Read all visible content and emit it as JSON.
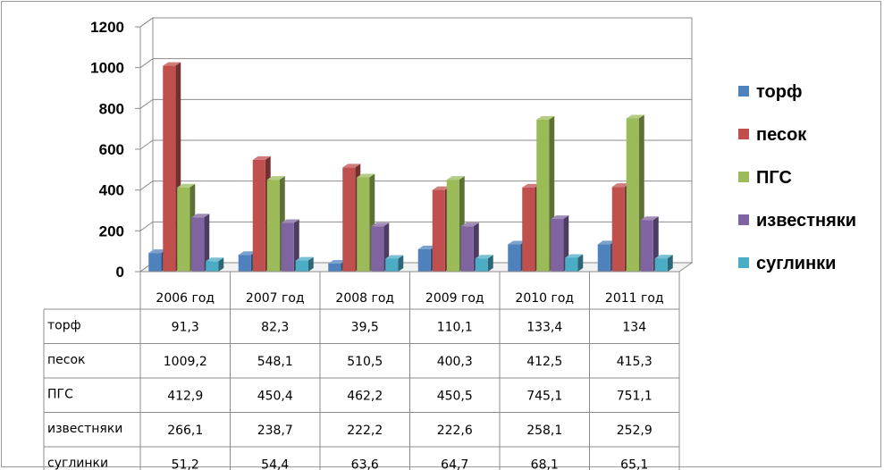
{
  "chart_data": {
    "type": "bar",
    "categories": [
      "2006 год",
      "2007 год",
      "2008 год",
      "2009 год",
      "2010 год",
      "2011 год"
    ],
    "series": [
      {
        "name": "торф",
        "values": [
          91.3,
          82.3,
          39.5,
          110.1,
          133.4,
          134
        ],
        "labels": [
          "91,3",
          "82,3",
          "39,5",
          "110,1",
          "133,4",
          "134"
        ]
      },
      {
        "name": "песок",
        "values": [
          1009.2,
          548.1,
          510.5,
          400.3,
          412.5,
          415.3
        ],
        "labels": [
          "1009,2",
          "548,1",
          "510,5",
          "400,3",
          "412,5",
          "415,3"
        ]
      },
      {
        "name": "ПГС",
        "values": [
          412.9,
          450.4,
          462.2,
          450.5,
          745.1,
          751.1
        ],
        "labels": [
          "412,9",
          "450,4",
          "462,2",
          "450,5",
          "745,1",
          "751,1"
        ]
      },
      {
        "name": "известняки",
        "values": [
          266.1,
          238.7,
          222.2,
          222.6,
          258.1,
          252.9
        ],
        "labels": [
          "266,1",
          "238,7",
          "222,2",
          "222,6",
          "258,1",
          "252,9"
        ]
      },
      {
        "name": "суглинки",
        "values": [
          51.2,
          54.4,
          63.6,
          64.7,
          68.1,
          65.1
        ],
        "labels": [
          "51,2",
          "54,4",
          "63,6",
          "64,7",
          "68,1",
          "65,1"
        ]
      }
    ],
    "yticks": [
      "0",
      "200",
      "400",
      "600",
      "800",
      "1000",
      "1200"
    ],
    "ylim": [
      0,
      1200
    ],
    "grid": true,
    "legend_position": "right",
    "data_table": true,
    "colors": {
      "торф": "#4f81bd",
      "песок": "#c0504d",
      "ПГС": "#9bbb59",
      "известняки": "#8064a2",
      "суглинки": "#4bacc6"
    }
  }
}
